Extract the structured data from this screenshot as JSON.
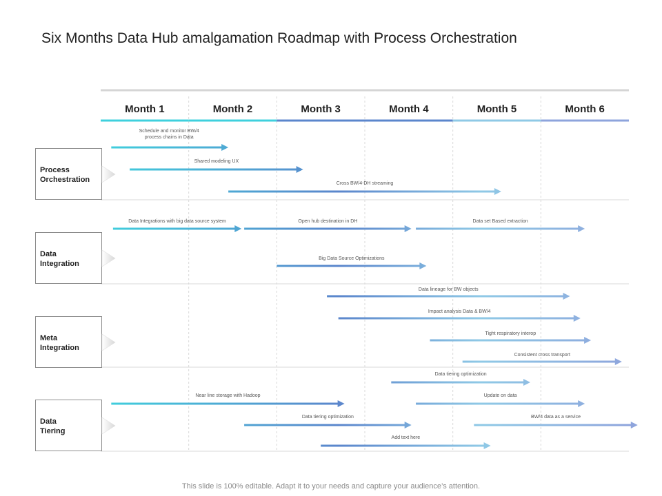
{
  "title": "Six Months Data Hub amalgamation Roadmap with Process Orchestration",
  "footer": "This slide is 100% editable. Adapt it to your needs and capture your audience’s attention.",
  "colors": {
    "grad_start": "#3fd0dd",
    "grad_mid": "#5b86cc",
    "grad_light": "#8fc9e6",
    "grad_end": "#8ea4dc",
    "month_line_1": "#3fd0dd",
    "month_line_2": "#5b86cc",
    "month_line_3": "#8fc9e6",
    "month_line_4": "#8ea4dc",
    "grid": "#d9d9d9",
    "header_rule": "#d5d5d5",
    "text_dark": "#222222",
    "label_text": "#555555"
  },
  "chart_data": {
    "type": "gantt",
    "months": [
      "Month 1",
      "Month 2",
      "Month 3",
      "Month 4",
      "Month 5",
      "Month 6"
    ],
    "timeline_unit": "months",
    "groups": [
      {
        "label": "Process Orchestration",
        "tasks": [
          {
            "label": "Schedule  and monitor BW/4 process chains  in Data",
            "start": 0.12,
            "end": 1.45
          },
          {
            "label": "Shared modeling UX",
            "start": 0.33,
            "end": 2.3
          },
          {
            "label": "Cross BW/4-DH streaming",
            "start": 1.45,
            "end": 4.55
          }
        ]
      },
      {
        "label": "Data Integration",
        "tasks": [
          {
            "label": "Data Integrations  with big data source system",
            "start": 0.14,
            "end": 1.6
          },
          {
            "label": "Open hub destination  in DH",
            "start": 1.63,
            "end": 3.53
          },
          {
            "label": "Data set Based extraction",
            "start": 3.58,
            "end": 5.5
          },
          {
            "label": "Big Data Source Optimizations",
            "start": 2.0,
            "end": 3.7
          }
        ]
      },
      {
        "label": "Meta Integration",
        "tasks": [
          {
            "label": "Data lineage for BW objects",
            "start": 2.57,
            "end": 5.33
          },
          {
            "label": "Impact analysis Data & BW/4",
            "start": 2.7,
            "end": 5.45
          },
          {
            "label": "Tight respiratory interop",
            "start": 3.74,
            "end": 5.57
          },
          {
            "label": "Consistent  cross transport",
            "start": 4.11,
            "end": 5.92
          }
        ]
      },
      {
        "label": "Data Tiering",
        "tasks": [
          {
            "label": "Data tiering optimization",
            "start": 3.3,
            "end": 4.88
          },
          {
            "label": "Near line storage with Hadoop",
            "start": 0.12,
            "end": 2.77
          },
          {
            "label": "Update on data",
            "start": 3.58,
            "end": 5.5
          },
          {
            "label": "Data tiering optimization",
            "start": 1.63,
            "end": 3.53
          },
          {
            "label": "BW/4 data as a service",
            "start": 4.24,
            "end": 6.1
          },
          {
            "label": "Add text here",
            "start": 2.5,
            "end": 4.43
          }
        ]
      }
    ]
  }
}
